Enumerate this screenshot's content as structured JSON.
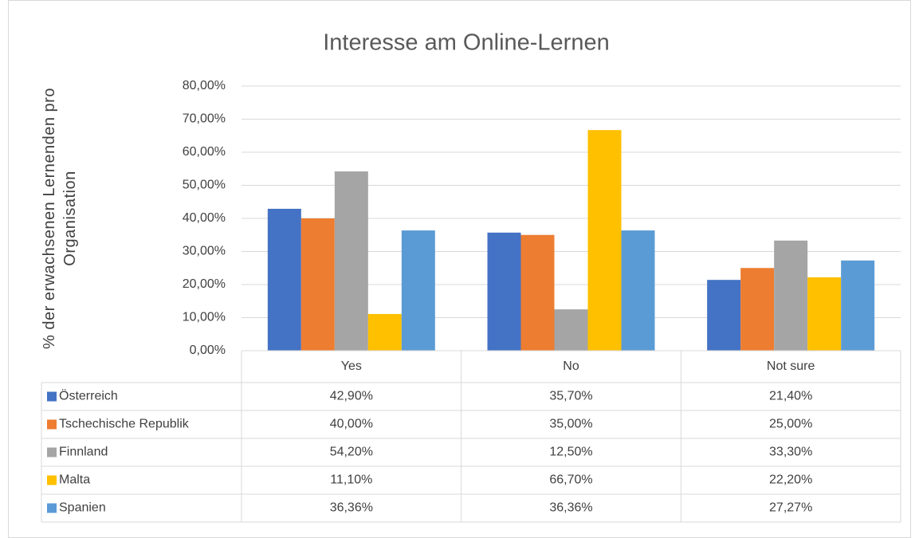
{
  "chart_data": {
    "type": "bar",
    "title": "Interesse am Online-Lernen",
    "y_label": "% der erwachsenen Lernenden pro Organisation",
    "categories": [
      "Yes",
      "No",
      "Not sure"
    ],
    "series": [
      {
        "name": "Österreich",
        "color": "#4472c4",
        "values": [
          42.9,
          35.7,
          21.4
        ],
        "value_labels": [
          "42,90%",
          "35,70%",
          "21,40%"
        ]
      },
      {
        "name": "Tschechische Republik",
        "color": "#ed7d31",
        "values": [
          40.0,
          35.0,
          25.0
        ],
        "value_labels": [
          "40,00%",
          "35,00%",
          "25,00%"
        ]
      },
      {
        "name": "Finnland",
        "color": "#a5a5a5",
        "values": [
          54.2,
          12.5,
          33.3
        ],
        "value_labels": [
          "54,20%",
          "12,50%",
          "33,30%"
        ]
      },
      {
        "name": "Malta",
        "color": "#ffc000",
        "values": [
          11.1,
          66.7,
          22.2
        ],
        "value_labels": [
          "11,10%",
          "66,70%",
          "22,20%"
        ]
      },
      {
        "name": "Spanien",
        "color": "#5b9bd5",
        "values": [
          36.36,
          36.36,
          27.27
        ],
        "value_labels": [
          "36,36%",
          "36,36%",
          "27,27%"
        ]
      }
    ],
    "ylim": [
      0,
      80
    ],
    "yticks": [
      {
        "value": 0,
        "label": "0,00%"
      },
      {
        "value": 10,
        "label": "10,00%"
      },
      {
        "value": 20,
        "label": "20,00%"
      },
      {
        "value": 30,
        "label": "30,00%"
      },
      {
        "value": 40,
        "label": "40,00%"
      },
      {
        "value": 50,
        "label": "50,00%"
      },
      {
        "value": 60,
        "label": "60,00%"
      },
      {
        "value": 70,
        "label": "70,00%"
      },
      {
        "value": 80,
        "label": "80,00%"
      }
    ],
    "grid": true,
    "legend": "data-table"
  }
}
